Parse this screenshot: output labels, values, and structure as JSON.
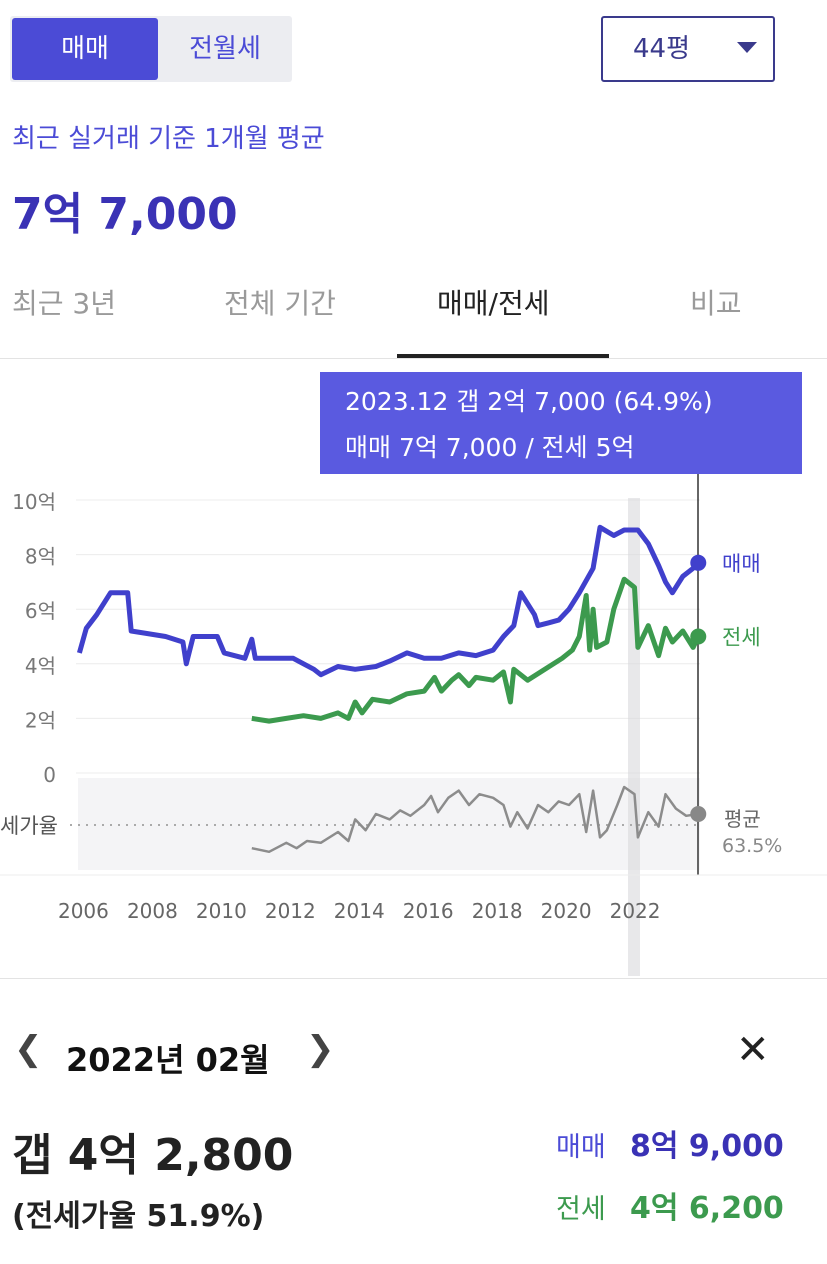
{
  "trade_toggle": {
    "sale": "매매",
    "jeonse_wolse": "전월세"
  },
  "area_select": {
    "value": "44평"
  },
  "summary": {
    "subtitle": "최근 실거래 기준 1개월 평균",
    "price": "7억 7,000"
  },
  "tabs": [
    {
      "label": "최근 3년"
    },
    {
      "label": "전체 기간"
    },
    {
      "label": "매매/전세"
    },
    {
      "label": "비교"
    }
  ],
  "tooltip": {
    "line1": "2023.12  갭 2억 7,000 (64.9%)",
    "line2": "매매 7억 7,000 / 전세 5억"
  },
  "colors": {
    "accent": "#4b4bd6",
    "sale": "#4040cc",
    "jeonse": "#3c9a4e",
    "ratio": "#8c8c8c",
    "tooltip_bg": "#5a5ae0"
  },
  "chart_data": {
    "type": "line",
    "y_ticks": [
      "10억",
      "8억",
      "6억",
      "4억",
      "2억",
      "0"
    ],
    "ylim": [
      0,
      10
    ],
    "xlim": [
      2005.9,
      2024
    ],
    "x_ticks": [
      "2006",
      "2008",
      "2010",
      "2012",
      "2014",
      "2016",
      "2018",
      "2020",
      "2022"
    ],
    "ratio_label": "세가율",
    "ratio_avg_name": "평균",
    "ratio_avg_value": "63.5%",
    "series": [
      {
        "name": "매매",
        "unit": "억",
        "points": [
          [
            2006.0,
            4.4
          ],
          [
            2006.2,
            5.3
          ],
          [
            2006.5,
            5.8
          ],
          [
            2006.9,
            6.6
          ],
          [
            2007.4,
            6.6
          ],
          [
            2007.5,
            5.2
          ],
          [
            2008.5,
            5.0
          ],
          [
            2009.0,
            4.8
          ],
          [
            2009.1,
            4.0
          ],
          [
            2009.3,
            5.0
          ],
          [
            2010.0,
            5.0
          ],
          [
            2010.2,
            4.4
          ],
          [
            2010.8,
            4.2
          ],
          [
            2011.0,
            4.9
          ],
          [
            2011.1,
            4.2
          ],
          [
            2012.2,
            4.2
          ],
          [
            2012.5,
            4.0
          ],
          [
            2012.8,
            3.8
          ],
          [
            2013.0,
            3.6
          ],
          [
            2013.5,
            3.9
          ],
          [
            2014.0,
            3.8
          ],
          [
            2014.6,
            3.9
          ],
          [
            2015.0,
            4.1
          ],
          [
            2015.5,
            4.4
          ],
          [
            2016.0,
            4.2
          ],
          [
            2016.5,
            4.2
          ],
          [
            2017.0,
            4.4
          ],
          [
            2017.5,
            4.3
          ],
          [
            2018.0,
            4.5
          ],
          [
            2018.3,
            5.0
          ],
          [
            2018.6,
            5.4
          ],
          [
            2018.8,
            6.6
          ],
          [
            2019.2,
            5.8
          ],
          [
            2019.3,
            5.4
          ],
          [
            2019.6,
            5.5
          ],
          [
            2019.9,
            5.6
          ],
          [
            2020.2,
            6.0
          ],
          [
            2020.5,
            6.6
          ],
          [
            2020.9,
            7.5
          ],
          [
            2021.1,
            9.0
          ],
          [
            2021.5,
            8.7
          ],
          [
            2021.8,
            8.9
          ],
          [
            2022.2,
            8.9
          ],
          [
            2022.5,
            8.4
          ],
          [
            2022.8,
            7.6
          ],
          [
            2023.0,
            7.0
          ],
          [
            2023.2,
            6.6
          ],
          [
            2023.5,
            7.2
          ],
          [
            2023.8,
            7.5
          ],
          [
            2023.95,
            7.7
          ]
        ]
      },
      {
        "name": "전세",
        "unit": "억",
        "points": [
          [
            2011.0,
            2.0
          ],
          [
            2011.5,
            1.9
          ],
          [
            2012.0,
            2.0
          ],
          [
            2012.5,
            2.1
          ],
          [
            2013.0,
            2.0
          ],
          [
            2013.5,
            2.2
          ],
          [
            2013.8,
            2.0
          ],
          [
            2014.0,
            2.6
          ],
          [
            2014.2,
            2.2
          ],
          [
            2014.5,
            2.7
          ],
          [
            2015.0,
            2.6
          ],
          [
            2015.5,
            2.9
          ],
          [
            2016.0,
            3.0
          ],
          [
            2016.3,
            3.5
          ],
          [
            2016.5,
            3.0
          ],
          [
            2016.8,
            3.4
          ],
          [
            2017.0,
            3.6
          ],
          [
            2017.3,
            3.2
          ],
          [
            2017.5,
            3.5
          ],
          [
            2018.0,
            3.4
          ],
          [
            2018.3,
            3.7
          ],
          [
            2018.5,
            2.6
          ],
          [
            2018.6,
            3.8
          ],
          [
            2019.0,
            3.4
          ],
          [
            2019.5,
            3.8
          ],
          [
            2020.0,
            4.2
          ],
          [
            2020.3,
            4.5
          ],
          [
            2020.5,
            5.0
          ],
          [
            2020.7,
            6.5
          ],
          [
            2020.8,
            4.5
          ],
          [
            2020.9,
            6.0
          ],
          [
            2021.0,
            4.6
          ],
          [
            2021.3,
            4.8
          ],
          [
            2021.5,
            6.0
          ],
          [
            2021.8,
            7.1
          ],
          [
            2022.1,
            6.8
          ],
          [
            2022.2,
            4.6
          ],
          [
            2022.5,
            5.4
          ],
          [
            2022.8,
            4.3
          ],
          [
            2023.0,
            5.3
          ],
          [
            2023.2,
            4.8
          ],
          [
            2023.5,
            5.2
          ],
          [
            2023.8,
            4.6
          ],
          [
            2023.95,
            5.0
          ]
        ]
      },
      {
        "name": "세가율",
        "unit": "%",
        "points": [
          [
            2011.0,
            46
          ],
          [
            2011.5,
            44
          ],
          [
            2012.0,
            49
          ],
          [
            2012.3,
            46
          ],
          [
            2012.6,
            50
          ],
          [
            2013.0,
            49
          ],
          [
            2013.5,
            55
          ],
          [
            2013.8,
            50
          ],
          [
            2014.0,
            62
          ],
          [
            2014.3,
            56
          ],
          [
            2014.6,
            65
          ],
          [
            2015.0,
            62
          ],
          [
            2015.3,
            67
          ],
          [
            2015.6,
            64
          ],
          [
            2016.0,
            70
          ],
          [
            2016.2,
            75
          ],
          [
            2016.4,
            66
          ],
          [
            2016.7,
            74
          ],
          [
            2017.0,
            78
          ],
          [
            2017.3,
            70
          ],
          [
            2017.6,
            76
          ],
          [
            2018.0,
            74
          ],
          [
            2018.3,
            70
          ],
          [
            2018.5,
            58
          ],
          [
            2018.7,
            66
          ],
          [
            2019.0,
            57
          ],
          [
            2019.3,
            70
          ],
          [
            2019.6,
            66
          ],
          [
            2019.9,
            72
          ],
          [
            2020.2,
            70
          ],
          [
            2020.5,
            76
          ],
          [
            2020.7,
            55
          ],
          [
            2020.9,
            78
          ],
          [
            2021.1,
            52
          ],
          [
            2021.3,
            56
          ],
          [
            2021.6,
            70
          ],
          [
            2021.8,
            80
          ],
          [
            2022.1,
            76
          ],
          [
            2022.2,
            52
          ],
          [
            2022.5,
            66
          ],
          [
            2022.8,
            58
          ],
          [
            2023.0,
            76
          ],
          [
            2023.3,
            68
          ],
          [
            2023.6,
            64
          ],
          [
            2023.95,
            65
          ]
        ]
      }
    ]
  },
  "detail": {
    "month": "2022년 02월",
    "gap": "갭 4억 2,800",
    "ratio": "(전세가율 51.9%)",
    "sale_label": "매매",
    "sale_value": "8억 9,000",
    "jeonse_label": "전세",
    "jeonse_value": "4억 6,200"
  }
}
